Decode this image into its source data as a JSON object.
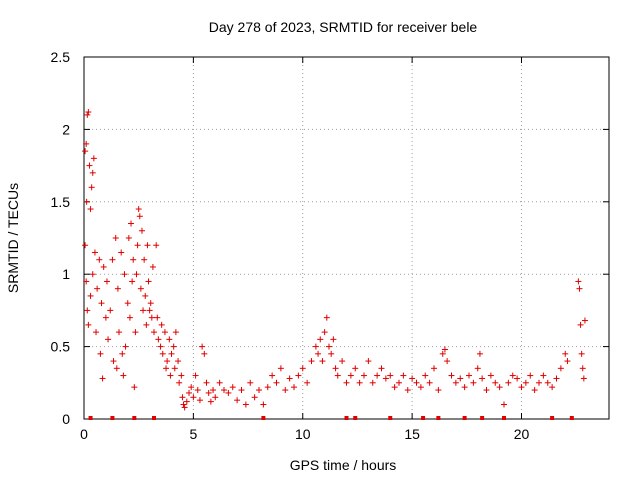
{
  "chart_data": {
    "type": "scatter",
    "title": "Day 278 of 2023, SRMTID for receiver bele",
    "xlabel": "GPS time / hours",
    "ylabel": "SRMTID / TECUs",
    "xlim": [
      0,
      24
    ],
    "ylim": [
      0,
      2.5
    ],
    "grid": true,
    "x_ticks": [
      0,
      5,
      10,
      15,
      20
    ],
    "y_ticks": [
      0,
      0.5,
      1,
      1.5,
      2,
      2.5
    ],
    "x_tick_labels": [
      "0",
      "5",
      "10",
      "15",
      "20"
    ],
    "y_tick_labels": [
      "0",
      "0.5",
      "1",
      "1.5",
      "2",
      "2.5"
    ],
    "marker": "+",
    "color": "#e00000",
    "series": [
      {
        "name": "SRMTID",
        "points": [
          [
            0.05,
            1.85
          ],
          [
            0.1,
            1.9
          ],
          [
            0.15,
            2.1
          ],
          [
            0.2,
            2.12
          ],
          [
            0.25,
            1.75
          ],
          [
            0.12,
            1.5
          ],
          [
            0.3,
            1.45
          ],
          [
            0.35,
            1.6
          ],
          [
            0.4,
            1.7
          ],
          [
            0.45,
            1.8
          ],
          [
            0.05,
            1.2
          ],
          [
            0.1,
            0.95
          ],
          [
            0.15,
            0.75
          ],
          [
            0.2,
            0.65
          ],
          [
            0.3,
            0.85
          ],
          [
            0.4,
            1.0
          ],
          [
            0.5,
            1.15
          ],
          [
            0.55,
            0.6
          ],
          [
            0.6,
            0.9
          ],
          [
            0.7,
            1.1
          ],
          [
            0.75,
            0.45
          ],
          [
            0.8,
            0.8
          ],
          [
            0.85,
            0.28
          ],
          [
            0.9,
            1.05
          ],
          [
            1.0,
            0.7
          ],
          [
            1.05,
            0.95
          ],
          [
            1.1,
            0.55
          ],
          [
            1.2,
            0.75
          ],
          [
            1.3,
            1.1
          ],
          [
            1.35,
            0.4
          ],
          [
            1.45,
            1.25
          ],
          [
            1.5,
            0.35
          ],
          [
            1.55,
            0.9
          ],
          [
            1.6,
            0.6
          ],
          [
            1.7,
            1.15
          ],
          [
            1.75,
            0.45
          ],
          [
            1.8,
            0.3
          ],
          [
            1.85,
            1.0
          ],
          [
            1.9,
            0.5
          ],
          [
            2.0,
            0.8
          ],
          [
            2.05,
            1.25
          ],
          [
            2.1,
            0.7
          ],
          [
            2.15,
            1.35
          ],
          [
            2.2,
            0.95
          ],
          [
            2.25,
            1.1
          ],
          [
            2.3,
            0.22
          ],
          [
            2.35,
            0.6
          ],
          [
            2.4,
            1.0
          ],
          [
            2.45,
            1.2
          ],
          [
            2.5,
            1.45
          ],
          [
            2.55,
            1.4
          ],
          [
            2.6,
            0.9
          ],
          [
            2.65,
            1.3
          ],
          [
            2.7,
            0.75
          ],
          [
            2.75,
            1.1
          ],
          [
            2.8,
            0.85
          ],
          [
            2.85,
            0.65
          ],
          [
            2.9,
            1.2
          ],
          [
            2.95,
            0.95
          ],
          [
            3.0,
            0.75
          ],
          [
            3.05,
            0.8
          ],
          [
            3.1,
            0.7
          ],
          [
            3.15,
            1.05
          ],
          [
            3.2,
            0.6
          ],
          [
            3.3,
            1.2
          ],
          [
            3.35,
            0.7
          ],
          [
            3.4,
            0.55
          ],
          [
            3.5,
            0.5
          ],
          [
            3.55,
            0.65
          ],
          [
            3.6,
            0.45
          ],
          [
            3.7,
            0.6
          ],
          [
            3.75,
            0.35
          ],
          [
            3.8,
            0.4
          ],
          [
            3.9,
            0.55
          ],
          [
            3.95,
            0.3
          ],
          [
            4.0,
            0.45
          ],
          [
            4.1,
            0.5
          ],
          [
            4.15,
            0.35
          ],
          [
            4.2,
            0.6
          ],
          [
            4.3,
            0.4
          ],
          [
            4.35,
            0.25
          ],
          [
            4.45,
            0.3
          ],
          [
            4.5,
            0.15
          ],
          [
            4.55,
            0.1
          ],
          [
            4.6,
            0.08
          ],
          [
            4.7,
            0.12
          ],
          [
            4.8,
            0.18
          ],
          [
            4.9,
            0.22
          ],
          [
            5.0,
            0.15
          ],
          [
            5.1,
            0.3
          ],
          [
            5.2,
            0.2
          ],
          [
            5.3,
            0.13
          ],
          [
            5.4,
            0.5
          ],
          [
            5.5,
            0.45
          ],
          [
            5.6,
            0.25
          ],
          [
            5.7,
            0.18
          ],
          [
            5.8,
            0.12
          ],
          [
            5.9,
            0.2
          ],
          [
            6.0,
            0.15
          ],
          [
            6.2,
            0.25
          ],
          [
            6.4,
            0.2
          ],
          [
            6.6,
            0.18
          ],
          [
            6.8,
            0.22
          ],
          [
            7.0,
            0.13
          ],
          [
            7.2,
            0.2
          ],
          [
            7.4,
            0.1
          ],
          [
            7.6,
            0.25
          ],
          [
            7.8,
            0.15
          ],
          [
            8.0,
            0.2
          ],
          [
            8.2,
            0.1
          ],
          [
            8.4,
            0.22
          ],
          [
            8.6,
            0.3
          ],
          [
            8.8,
            0.25
          ],
          [
            9.0,
            0.35
          ],
          [
            9.2,
            0.2
          ],
          [
            9.4,
            0.28
          ],
          [
            9.6,
            0.22
          ],
          [
            9.8,
            0.3
          ],
          [
            10.0,
            0.35
          ],
          [
            10.2,
            0.25
          ],
          [
            10.4,
            0.4
          ],
          [
            10.6,
            0.5
          ],
          [
            10.7,
            0.45
          ],
          [
            10.8,
            0.55
          ],
          [
            10.9,
            0.4
          ],
          [
            11.0,
            0.6
          ],
          [
            11.1,
            0.7
          ],
          [
            11.2,
            0.5
          ],
          [
            11.3,
            0.45
          ],
          [
            11.4,
            0.55
          ],
          [
            11.5,
            0.35
          ],
          [
            11.6,
            0.3
          ],
          [
            11.8,
            0.4
          ],
          [
            12.0,
            0.25
          ],
          [
            12.2,
            0.3
          ],
          [
            12.4,
            0.35
          ],
          [
            12.6,
            0.25
          ],
          [
            12.8,
            0.3
          ],
          [
            13.0,
            0.4
          ],
          [
            13.2,
            0.25
          ],
          [
            13.4,
            0.3
          ],
          [
            13.6,
            0.35
          ],
          [
            13.8,
            0.28
          ],
          [
            14.0,
            0.3
          ],
          [
            14.2,
            0.22
          ],
          [
            14.4,
            0.25
          ],
          [
            14.6,
            0.3
          ],
          [
            14.8,
            0.2
          ],
          [
            15.0,
            0.28
          ],
          [
            15.2,
            0.25
          ],
          [
            15.4,
            0.22
          ],
          [
            15.6,
            0.3
          ],
          [
            15.8,
            0.25
          ],
          [
            16.0,
            0.35
          ],
          [
            16.2,
            0.2
          ],
          [
            16.4,
            0.45
          ],
          [
            16.5,
            0.48
          ],
          [
            16.6,
            0.4
          ],
          [
            16.8,
            0.3
          ],
          [
            17.0,
            0.25
          ],
          [
            17.2,
            0.28
          ],
          [
            17.4,
            0.22
          ],
          [
            17.6,
            0.3
          ],
          [
            17.8,
            0.25
          ],
          [
            18.0,
            0.35
          ],
          [
            18.1,
            0.45
          ],
          [
            18.2,
            0.28
          ],
          [
            18.4,
            0.2
          ],
          [
            18.6,
            0.3
          ],
          [
            18.8,
            0.25
          ],
          [
            19.0,
            0.22
          ],
          [
            19.2,
            0.1
          ],
          [
            19.4,
            0.25
          ],
          [
            19.6,
            0.3
          ],
          [
            19.8,
            0.28
          ],
          [
            20.0,
            0.22
          ],
          [
            20.2,
            0.25
          ],
          [
            20.4,
            0.3
          ],
          [
            20.6,
            0.2
          ],
          [
            20.8,
            0.25
          ],
          [
            21.0,
            0.3
          ],
          [
            21.2,
            0.25
          ],
          [
            21.4,
            0.22
          ],
          [
            21.6,
            0.28
          ],
          [
            21.8,
            0.35
          ],
          [
            22.0,
            0.45
          ],
          [
            22.1,
            0.4
          ],
          [
            22.6,
            0.95
          ],
          [
            22.65,
            0.9
          ],
          [
            22.7,
            0.65
          ],
          [
            22.75,
            0.45
          ],
          [
            22.8,
            0.35
          ],
          [
            22.85,
            0.28
          ],
          [
            22.9,
            0.68
          ]
        ]
      }
    ],
    "zero_markers_x": [
      0.3,
      1.3,
      2.3,
      3.2,
      8.2,
      12.0,
      12.4,
      14.0,
      15.5,
      16.2,
      17.4,
      18.2,
      19.2,
      21.4,
      22.3
    ]
  }
}
